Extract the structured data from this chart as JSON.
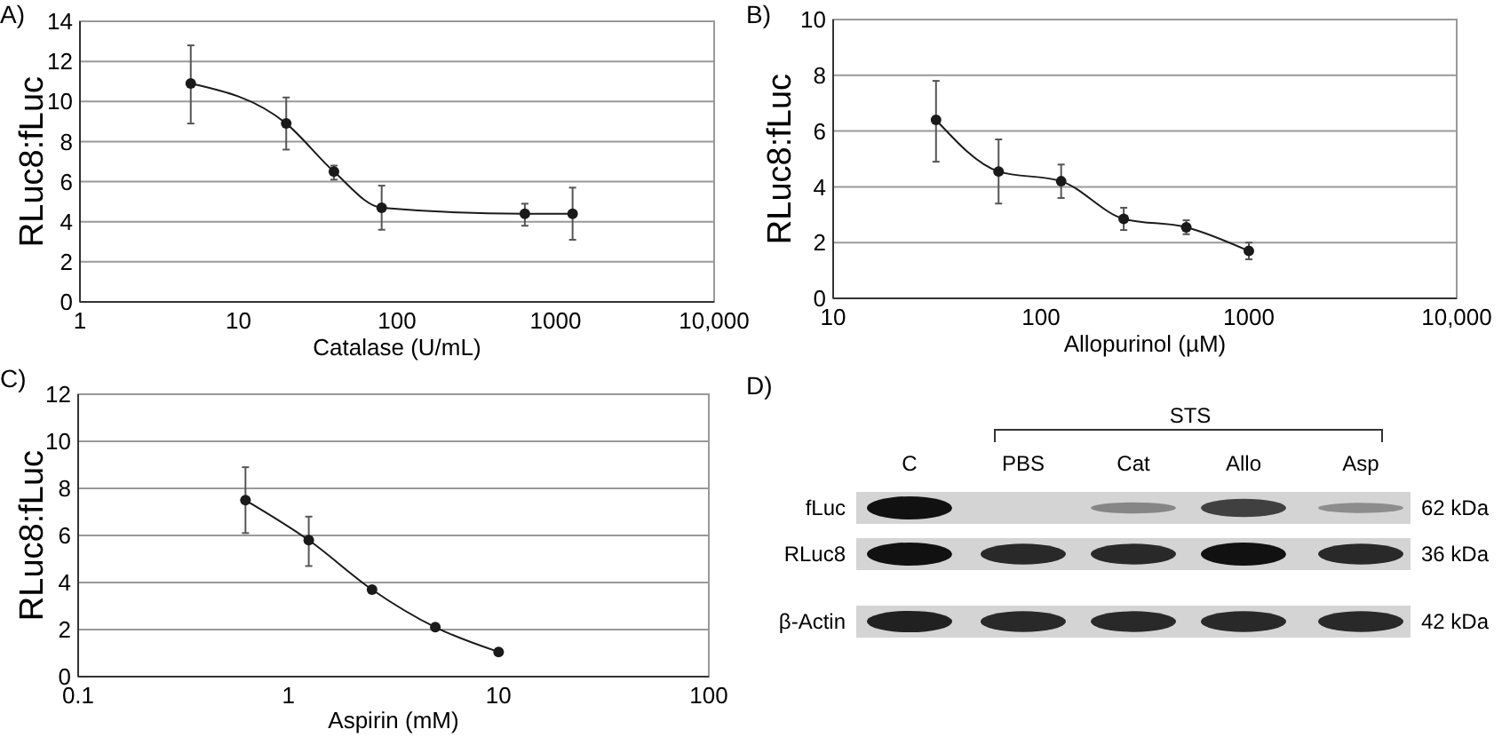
{
  "chart_data": [
    {
      "type": "line",
      "title": "A)",
      "xlabel": "Catalase (U/mL)",
      "ylabel": "RLuc8:fLuc",
      "log": "x",
      "grid": "y",
      "marker": "circle",
      "line_style": "solid",
      "xlim": [
        1,
        10000
      ],
      "xticks": [
        1,
        10,
        100,
        1000,
        {
          "value": 10000,
          "label": "10,000"
        }
      ],
      "ylim": [
        0,
        14
      ],
      "yticks": [
        0,
        2,
        4,
        6,
        8,
        10,
        12,
        14
      ],
      "series": [
        {
          "color": "#1a1a1a",
          "x": [
            5,
            20,
            40,
            80,
            640,
            1280
          ],
          "values": [
            10.9,
            8.9,
            6.5,
            4.7,
            4.4,
            4.4
          ],
          "errors": [
            [
              8.9,
              12.8
            ],
            [
              7.6,
              10.2
            ],
            [
              6.1,
              6.8
            ],
            [
              3.6,
              5.8
            ],
            [
              3.8,
              4.9
            ],
            [
              3.1,
              5.7
            ]
          ]
        }
      ]
    },
    {
      "type": "line",
      "title": "B)",
      "xlabel": "Allopurinol (µM)",
      "ylabel": "RLuc8:fLuc",
      "log": "x",
      "grid": "y",
      "marker": "circle",
      "line_style": "solid",
      "xlim": [
        10,
        10000
      ],
      "xticks": [
        10,
        100,
        1000,
        {
          "value": 10000,
          "label": "10,000"
        }
      ],
      "ylim": [
        0,
        10
      ],
      "yticks": [
        0,
        2,
        4,
        6,
        8,
        10
      ],
      "series": [
        {
          "color": "#1a1a1a",
          "x": [
            31.25,
            62.5,
            125,
            250,
            500,
            1000
          ],
          "values": [
            6.4,
            4.55,
            4.2,
            2.85,
            2.55,
            1.7
          ],
          "errors": [
            [
              4.9,
              7.8
            ],
            [
              3.4,
              5.7
            ],
            [
              3.6,
              4.8
            ],
            [
              2.45,
              3.25
            ],
            [
              2.3,
              2.8
            ],
            [
              1.4,
              2.0
            ]
          ]
        }
      ]
    },
    {
      "type": "line",
      "title": "C)",
      "xlabel": "Aspirin (mM)",
      "ylabel": "RLuc8:fLuc",
      "log": "x",
      "grid": "y",
      "marker": "circle",
      "line_style": "solid",
      "xlim": [
        0.1,
        100
      ],
      "xticks": [
        0.1,
        1,
        10,
        100
      ],
      "ylim": [
        0,
        12
      ],
      "yticks": [
        0,
        2,
        4,
        6,
        8,
        10,
        12
      ],
      "series": [
        {
          "color": "#1a1a1a",
          "x": [
            0.625,
            1.25,
            2.5,
            5,
            10
          ],
          "values": [
            7.5,
            5.8,
            3.7,
            2.1,
            1.05
          ],
          "errors": [
            [
              6.1,
              8.9
            ],
            [
              4.7,
              6.8
            ],
            null,
            [
              2.0,
              2.2
            ],
            null
          ]
        }
      ]
    },
    {
      "type": "other",
      "title": "D)",
      "annotations": [
        "STS",
        "C",
        "PBS",
        "Cat",
        "Allo",
        "Asp",
        "fLuc",
        "RLuc8",
        "β-Actin",
        "62 kDa",
        "36 kDa",
        "42 kDa"
      ]
    }
  ]
}
